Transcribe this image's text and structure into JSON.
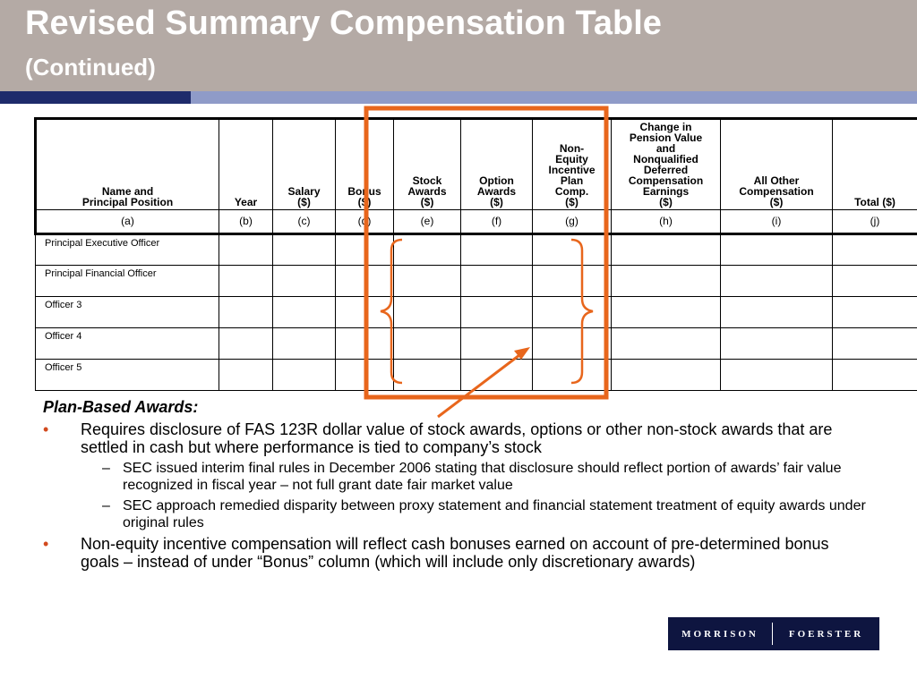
{
  "slide": {
    "title": "Revised Summary Compensation Table",
    "subtitle": "(Continued)"
  },
  "table": {
    "columns": [
      {
        "lines": [
          "Name and",
          "Principal Position"
        ],
        "letter": "(a)"
      },
      {
        "lines": [
          "Year"
        ],
        "letter": "(b)"
      },
      {
        "lines": [
          "Salary",
          "($)"
        ],
        "letter": "(c)"
      },
      {
        "lines": [
          "Bonus",
          "($)"
        ],
        "letter": "(d)"
      },
      {
        "lines": [
          "Stock",
          "Awards",
          "($)"
        ],
        "letter": "(e)"
      },
      {
        "lines": [
          "Option",
          "Awards",
          "($)"
        ],
        "letter": "(f)"
      },
      {
        "lines": [
          "Non-",
          "Equity",
          "Incentive",
          "Plan",
          "Comp.",
          "($)"
        ],
        "letter": "(g)"
      },
      {
        "lines": [
          "Change in",
          "Pension Value",
          "and",
          "Nonqualified",
          "Deferred",
          "Compensation",
          "Earnings",
          "($)"
        ],
        "letter": "(h)"
      },
      {
        "lines": [
          "All Other",
          "Compensation",
          "($)"
        ],
        "letter": "(i)"
      },
      {
        "lines": [
          "Total ($)"
        ],
        "letter": "(j)"
      }
    ],
    "rows": [
      "Principal Executive Officer",
      "Principal Financial Officer",
      "Officer 3",
      "Officer 4",
      "Officer 5"
    ]
  },
  "content": {
    "heading": "Plan-Based Awards:",
    "bullets": [
      {
        "text": "Requires disclosure of FAS 123R dollar value of stock awards, options or other non-stock awards that are settled in cash but where performance is tied to company’s stock",
        "subs": [
          "SEC issued interim final rules in December 2006 stating that disclosure should reflect portion of awards’ fair value recognized in fiscal year – not full grant date fair market value",
          "SEC approach remedied disparity between proxy statement and financial statement treatment of equity awards under original rules"
        ]
      },
      {
        "text": "Non-equity incentive compensation will reflect cash bonuses earned on account of pre-determined bonus goals – instead of under “Bonus” column (which will include only discretionary awards)",
        "subs": []
      }
    ],
    "bullet_symbol": "•",
    "sub_symbol": "–"
  },
  "logo": {
    "left": "MORRISON",
    "right": "FOERSTER"
  },
  "colors": {
    "title_bar": "#b4aaa5",
    "band_dark": "#1e2b6b",
    "band_light": "#8f9bc8",
    "highlight": "#e8661c",
    "bullet": "#d24a1e",
    "logo_bg": "#0e1540"
  }
}
